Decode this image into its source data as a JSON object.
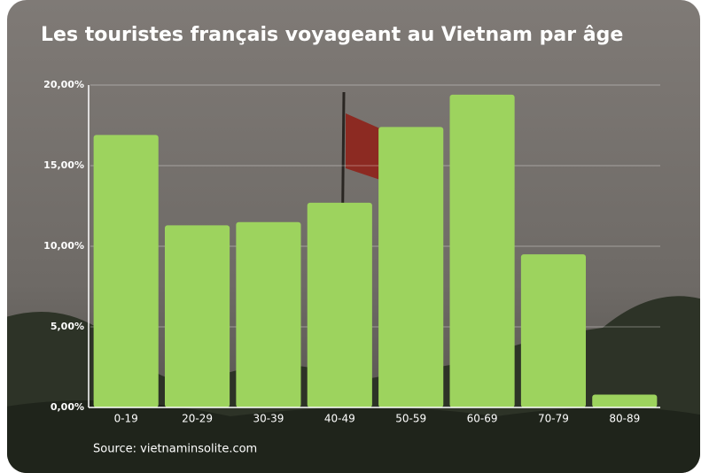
{
  "chart_data": {
    "type": "bar",
    "title": "Les touristes français voyageant au Vietnam par âge",
    "categories": [
      "0-19",
      "20-29",
      "30-39",
      "40-49",
      "50-59",
      "60-69",
      "70-79",
      "80-89"
    ],
    "values": [
      16.9,
      11.3,
      11.5,
      12.7,
      17.4,
      19.4,
      9.5,
      0.8
    ],
    "color": "#9dd35e",
    "ylim": [
      0,
      20
    ],
    "yticks": [
      {
        "value": 0,
        "label": "0,00%"
      },
      {
        "value": 5,
        "label": "5,00%"
      },
      {
        "value": 10,
        "label": "10,00%"
      },
      {
        "value": 15,
        "label": "15,00%"
      },
      {
        "value": 20,
        "label": "20,00%"
      }
    ],
    "grid": true,
    "source": "Source: vietnaminsolite.com"
  }
}
